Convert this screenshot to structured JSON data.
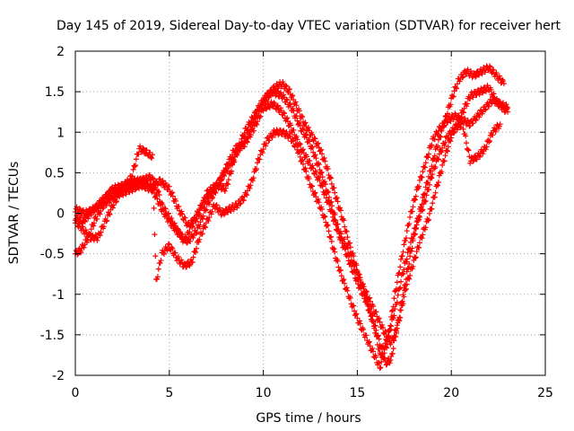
{
  "chart_data": {
    "type": "scatter",
    "title": "Day 145 of 2019, Sidereal Day-to-day VTEC variation (SDTVAR) for receiver hert",
    "xlabel": "GPS time / hours",
    "ylabel": "SDTVAR / TECUs",
    "xlim": [
      0,
      25
    ],
    "ylim": [
      -2,
      2
    ],
    "xticks": [
      "0",
      "5",
      "10",
      "15",
      "20",
      "25"
    ],
    "yticks": [
      "-2",
      "-1.5",
      "-1",
      "-0.5",
      "0",
      "0.5",
      "1",
      "1.5",
      "2"
    ],
    "grid": true,
    "marker": "+",
    "color": "#ff0000",
    "series": [
      {
        "x": [
          0.0,
          0.3,
          0.7,
          1.0,
          1.5,
          2.0,
          2.5,
          3.0,
          3.5,
          4.0,
          4.3,
          4.6,
          5.0,
          5.4,
          5.8,
          6.2,
          6.6,
          7.0,
          7.4,
          7.8,
          8.2,
          8.6,
          9.0,
          9.4,
          9.8,
          10.2,
          10.6,
          11.0,
          11.4,
          11.8,
          12.2,
          12.6,
          13.0,
          13.4,
          13.8,
          14.2,
          14.6,
          15.0,
          15.4,
          15.8,
          16.2,
          16.5,
          16.8,
          17.2,
          17.6,
          18.0,
          18.4,
          18.8,
          19.2,
          19.6,
          20.0,
          20.4,
          20.8,
          21.2,
          21.6,
          22.0,
          22.4,
          22.8
        ],
        "y": [
          -0.5,
          -0.45,
          -0.3,
          -0.1,
          0.1,
          0.2,
          0.3,
          0.35,
          0.4,
          0.45,
          0.35,
          0.1,
          -0.05,
          -0.2,
          -0.35,
          -0.15,
          0.05,
          0.2,
          0.3,
          0.45,
          0.6,
          0.75,
          0.9,
          1.1,
          1.3,
          1.45,
          1.55,
          1.6,
          1.5,
          1.3,
          1.1,
          0.95,
          0.8,
          0.55,
          0.25,
          -0.05,
          -0.4,
          -0.7,
          -1.0,
          -1.3,
          -1.6,
          -1.85,
          -1.8,
          -1.3,
          -0.8,
          -0.3,
          0.1,
          0.45,
          0.8,
          1.1,
          1.4,
          1.65,
          1.75,
          1.7,
          1.75,
          1.8,
          1.7,
          1.6
        ]
      },
      {
        "x": [
          0.0,
          0.4,
          0.8,
          1.2,
          1.6,
          2.0,
          2.5,
          3.0,
          3.4,
          3.8,
          4.1,
          4.3,
          4.6,
          5.0,
          5.4,
          5.8,
          6.2,
          6.6,
          7.0,
          7.4,
          7.8,
          8.2,
          8.6,
          9.0,
          9.4,
          9.8,
          10.2,
          10.6,
          11.0,
          11.4,
          11.8,
          12.2,
          12.6,
          13.0,
          13.4,
          13.8,
          14.2,
          14.6,
          15.0,
          15.4,
          15.8,
          16.2,
          16.6,
          17.0,
          17.4,
          17.8,
          18.2,
          18.6,
          19.0,
          19.4,
          19.8,
          20.2,
          20.6,
          21.0,
          21.4,
          21.8,
          22.2,
          22.6,
          23.0
        ],
        "y": [
          -0.1,
          -0.2,
          -0.3,
          -0.3,
          -0.1,
          0.1,
          0.3,
          0.45,
          0.8,
          0.75,
          0.7,
          -0.85,
          -0.5,
          -0.4,
          -0.55,
          -0.65,
          -0.6,
          -0.3,
          -0.1,
          0.1,
          0.0,
          0.05,
          0.1,
          0.2,
          0.4,
          0.7,
          0.9,
          1.0,
          1.0,
          0.95,
          0.8,
          0.55,
          0.3,
          0.1,
          -0.15,
          -0.5,
          -0.8,
          -1.05,
          -1.3,
          -1.5,
          -1.7,
          -1.9,
          -1.6,
          -1.0,
          -0.5,
          -0.05,
          0.3,
          0.6,
          0.9,
          1.05,
          1.15,
          1.2,
          1.15,
          1.1,
          1.2,
          1.3,
          1.4,
          1.35,
          1.3
        ]
      },
      {
        "x": [
          0.0,
          0.5,
          1.0,
          1.5,
          2.0,
          2.5,
          3.0,
          3.5,
          4.0,
          4.5,
          5.0,
          5.5,
          6.0,
          6.5,
          7.0,
          7.5,
          8.0,
          8.5,
          9.0,
          9.5,
          10.0,
          10.5,
          11.0,
          11.5,
          12.0,
          12.5,
          13.0,
          13.5,
          14.0,
          14.5,
          15.0,
          15.5,
          16.0,
          16.4,
          16.8,
          17.2,
          17.6,
          18.0,
          18.4,
          18.8,
          19.2,
          19.6,
          20.0,
          20.5,
          21.0,
          21.5,
          22.0,
          22.5,
          23.0
        ],
        "y": [
          0.05,
          0.0,
          0.05,
          0.15,
          0.3,
          0.25,
          0.3,
          0.35,
          0.3,
          0.4,
          0.3,
          0.05,
          -0.15,
          -0.05,
          0.25,
          0.35,
          0.3,
          0.7,
          1.0,
          1.2,
          1.4,
          1.5,
          1.45,
          1.3,
          1.05,
          0.85,
          0.55,
          0.2,
          -0.2,
          -0.45,
          -0.75,
          -1.0,
          -1.25,
          -1.45,
          -1.6,
          -1.35,
          -0.9,
          -0.6,
          -0.3,
          -0.05,
          0.3,
          0.65,
          0.95,
          1.2,
          1.45,
          1.5,
          1.55,
          1.35,
          1.25
        ]
      },
      {
        "x": [
          0.0,
          0.4,
          0.8,
          1.2,
          1.6,
          2.0,
          2.6,
          3.2,
          3.8,
          4.2,
          4.6,
          5.0,
          5.5,
          6.0,
          6.5,
          7.0,
          7.5,
          8.0,
          8.5,
          9.0,
          9.5,
          10.0,
          10.5,
          11.0,
          11.5,
          12.0,
          12.5,
          13.0,
          13.5,
          14.0,
          14.5,
          15.0,
          15.5,
          15.9,
          16.2,
          16.6,
          17.0,
          17.4,
          17.8,
          18.2,
          18.6,
          19.0,
          19.4,
          19.8,
          20.2,
          20.6,
          21.0,
          21.4,
          21.8,
          22.2,
          22.6
        ],
        "y": [
          -0.05,
          -0.1,
          0.0,
          0.1,
          0.2,
          0.3,
          0.35,
          0.4,
          0.4,
          0.25,
          0.05,
          -0.1,
          -0.25,
          -0.35,
          -0.2,
          0.1,
          0.3,
          0.55,
          0.8,
          0.85,
          1.05,
          1.3,
          1.35,
          1.25,
          1.05,
          0.8,
          0.6,
          0.4,
          0.1,
          -0.25,
          -0.55,
          -0.85,
          -1.1,
          -1.4,
          -1.75,
          -1.55,
          -1.2,
          -0.75,
          -0.4,
          -0.1,
          0.15,
          0.5,
          0.75,
          0.95,
          1.05,
          1.1,
          0.65,
          0.7,
          0.8,
          1.0,
          1.1
        ]
      }
    ]
  }
}
